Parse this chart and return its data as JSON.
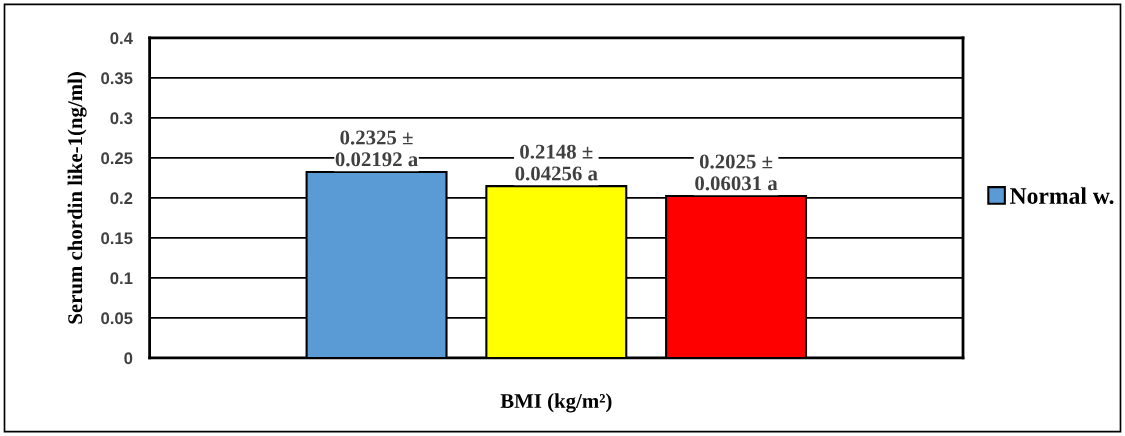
{
  "chart_data": {
    "type": "bar",
    "xlabel": "BMI (kg/m²)",
    "ylabel": "Serum chordin like-1(ng/ml)",
    "categories": [
      null
    ],
    "series": [
      {
        "name": "Normal w.",
        "color": "#5b9bd5",
        "values": [
          0.2325
        ],
        "value_labels": [
          "0.2325 ±\n0.02192 a"
        ]
      },
      {
        "color": "#ffff00",
        "values": [
          0.2148
        ],
        "value_labels": [
          "0.2148 ±\n0.04256 a"
        ]
      },
      {
        "color": "#ff0000",
        "values": [
          0.2025
        ],
        "value_labels": [
          "0.2025 ±\n0.06031 a"
        ]
      }
    ],
    "ylim": [
      0,
      0.4
    ],
    "yticks": [
      0,
      0.05,
      0.1,
      0.15,
      0.2,
      0.25,
      0.3,
      0.35,
      0.4
    ],
    "grid": "y",
    "legend": "right"
  }
}
